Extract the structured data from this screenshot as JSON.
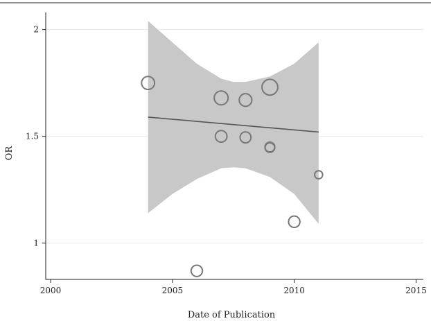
{
  "chart_data": {
    "type": "scatter",
    "title": "",
    "xlabel": "Date of Publication",
    "ylabel": "OR",
    "xlim": [
      1999.8,
      2015.3
    ],
    "ylim": [
      0.83,
      2.08
    ],
    "grid": true,
    "x_ticks": [
      2000,
      2005,
      2010,
      2015
    ],
    "x_tick_labels": [
      "2000",
      "2005",
      "2010",
      "2015"
    ],
    "y_ticks": [
      1,
      1.5,
      2
    ],
    "y_tick_labels": [
      "1",
      "1.5",
      "2"
    ],
    "points": [
      {
        "x": 2004,
        "y": 1.75,
        "weight": 3
      },
      {
        "x": 2006,
        "y": 0.87,
        "weight": 2
      },
      {
        "x": 2007,
        "y": 1.68,
        "weight": 3.5
      },
      {
        "x": 2007,
        "y": 1.5,
        "weight": 2.2
      },
      {
        "x": 2008,
        "y": 1.67,
        "weight": 2.7
      },
      {
        "x": 2008,
        "y": 1.495,
        "weight": 1.8
      },
      {
        "x": 2009,
        "y": 1.73,
        "weight": 5
      },
      {
        "x": 2009,
        "y": 1.45,
        "weight": 1.3
      },
      {
        "x": 2009,
        "y": 1.447,
        "weight": 1.2
      },
      {
        "x": 2010,
        "y": 1.1,
        "weight": 2
      },
      {
        "x": 2011,
        "y": 1.32,
        "weight": 0.7
      }
    ],
    "fit_line": {
      "x": [
        2004,
        2011
      ],
      "y": [
        1.59,
        1.52
      ]
    },
    "confidence_band": {
      "x": [
        2004,
        2005,
        2006,
        2007,
        2007.5,
        2008,
        2009,
        2010,
        2011
      ],
      "lower": [
        1.14,
        1.23,
        1.3,
        1.35,
        1.355,
        1.35,
        1.31,
        1.23,
        1.09
      ],
      "upper": [
        2.04,
        1.94,
        1.84,
        1.77,
        1.755,
        1.755,
        1.78,
        1.84,
        1.94
      ]
    },
    "colors": {
      "band": "#c8c8c8",
      "line": "#555555",
      "marker": "#777777",
      "grid": "#eaeaea",
      "axis": "#222222"
    }
  }
}
